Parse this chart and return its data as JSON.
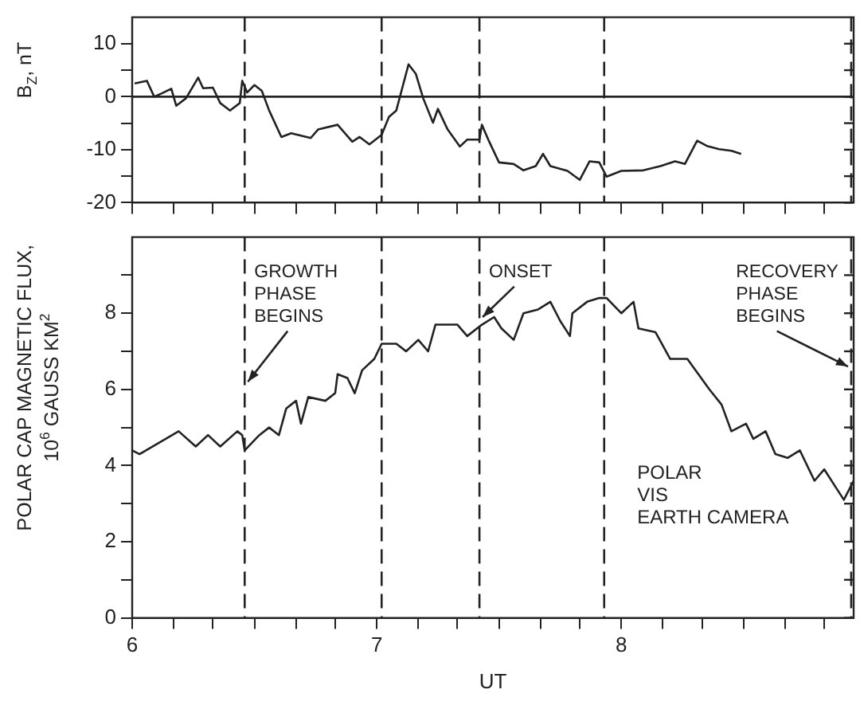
{
  "chart_data": [
    {
      "type": "line",
      "ylabel": "B$_{Z}$, nT",
      "xlim": [
        6,
        8.95
      ],
      "ylim": [
        -20,
        15
      ],
      "xticks": [
        {
          "value": 6,
          "label": null
        },
        {
          "value": 6.17,
          "label": null
        },
        {
          "value": 6.33,
          "label": null
        },
        {
          "value": 6.5,
          "label": null
        },
        {
          "value": 6.67,
          "label": null
        },
        {
          "value": 6.83,
          "label": null
        },
        {
          "value": 7,
          "label": null
        },
        {
          "value": 7.17,
          "label": null
        },
        {
          "value": 7.33,
          "label": null
        },
        {
          "value": 7.5,
          "label": null
        },
        {
          "value": 7.67,
          "label": null
        },
        {
          "value": 7.83,
          "label": null
        },
        {
          "value": 8,
          "label": null
        },
        {
          "value": 8.17,
          "label": null
        },
        {
          "value": 8.33,
          "label": null
        },
        {
          "value": 8.5,
          "label": null
        },
        {
          "value": 8.67,
          "label": null
        },
        {
          "value": 8.83,
          "label": null
        }
      ],
      "yticks": [
        -20,
        {
          "value": -15,
          "label": null
        },
        -10,
        {
          "value": -5,
          "label": null
        },
        0,
        {
          "value": 5,
          "label": null
        },
        10
      ],
      "tick_labels": "y",
      "grid": false,
      "legend": false,
      "marker": "none",
      "line_style": "solid",
      "series": [
        {
          "color": "#222222",
          "x": [
            6.01,
            6.06,
            6.09,
            6.12,
            6.16,
            6.18,
            6.22,
            6.27,
            6.29,
            6.33,
            6.36,
            6.4,
            6.44,
            6.45,
            6.47,
            6.5,
            6.53,
            6.56,
            6.61,
            6.65,
            6.73,
            6.76,
            6.84,
            6.9,
            6.93,
            6.97,
            7.02,
            7.05,
            7.08,
            7.13,
            7.16,
            7.19,
            7.23,
            7.25,
            7.29,
            7.34,
            7.37,
            7.42,
            7.43,
            7.46,
            7.5,
            7.56,
            7.6,
            7.65,
            7.68,
            7.71,
            7.78,
            7.83,
            7.87,
            7.91,
            7.94,
            8,
            8.09,
            8.16,
            8.22,
            8.26,
            8.31,
            8.35,
            8.4,
            8.45,
            8.49
          ],
          "values": [
            2.5,
            3,
            0,
            0.6,
            1.5,
            -1.7,
            -0.3,
            3.6,
            1.6,
            1.7,
            -1.2,
            -2.6,
            -1.2,
            3,
            0.8,
            2.2,
            1.1,
            -2.6,
            -7.6,
            -6.9,
            -7.8,
            -6.2,
            -5.3,
            -8.5,
            -7.6,
            -9,
            -7.2,
            -3.8,
            -2.6,
            6.1,
            4.3,
            -0.3,
            -4.9,
            -2.3,
            -6.2,
            -9.4,
            -8.1,
            -8.1,
            -5.3,
            -8.5,
            -12.4,
            -12.7,
            -13.9,
            -13.1,
            -10.8,
            -13.1,
            -14,
            -15.7,
            -12.2,
            -12.4,
            -15.1,
            -14,
            -13.9,
            -13.1,
            -12.2,
            -12.7,
            -8.3,
            -9.3,
            -9.9,
            -10.2,
            -10.8
          ]
        }
      ],
      "ref_lines": [
        {
          "axis": "y",
          "value": 0,
          "line_style": "solid"
        },
        {
          "axis": "x",
          "value": 6.46,
          "line_style": "dashed"
        },
        {
          "axis": "x",
          "value": 7.02,
          "line_style": "dashed"
        },
        {
          "axis": "x",
          "value": 7.42,
          "line_style": "dashed"
        },
        {
          "axis": "x",
          "value": 7.93,
          "line_style": "dashed"
        },
        {
          "axis": "x",
          "value": 8.94,
          "line_style": "dashed"
        }
      ]
    },
    {
      "type": "line",
      "ylabel": "POLAR CAP MAGNETIC FLUX,\n10$^{6}$ GAUSS KM$^{2}$",
      "xlabel": "UT",
      "xlim": [
        6,
        8.95
      ],
      "ylim": [
        0,
        10
      ],
      "xticks": [
        6,
        {
          "value": 6.17,
          "label": null
        },
        {
          "value": 6.33,
          "label": null
        },
        {
          "value": 6.5,
          "label": null
        },
        {
          "value": 6.67,
          "label": null
        },
        {
          "value": 6.83,
          "label": null
        },
        7,
        {
          "value": 7.17,
          "label": null
        },
        {
          "value": 7.33,
          "label": null
        },
        {
          "value": 7.5,
          "label": null
        },
        {
          "value": 7.67,
          "label": null
        },
        {
          "value": 7.83,
          "label": null
        },
        8,
        {
          "value": 8.17,
          "label": null
        },
        {
          "value": 8.33,
          "label": null
        },
        {
          "value": 8.5,
          "label": null
        },
        {
          "value": 8.67,
          "label": null
        },
        {
          "value": 8.83,
          "label": null
        }
      ],
      "yticks": [
        0,
        {
          "value": 1,
          "label": null
        },
        2,
        {
          "value": 3,
          "label": null
        },
        4,
        {
          "value": 5,
          "label": null
        },
        6,
        {
          "value": 7,
          "label": null
        },
        8,
        {
          "value": 9,
          "label": null
        }
      ],
      "grid": false,
      "legend": false,
      "marker": "none",
      "line_style": "solid",
      "series": [
        {
          "color": "#222222",
          "x": [
            6,
            6.03,
            6.19,
            6.26,
            6.31,
            6.36,
            6.43,
            6.45,
            6.46,
            6.52,
            6.56,
            6.6,
            6.63,
            6.67,
            6.69,
            6.72,
            6.79,
            6.83,
            6.84,
            6.88,
            6.91,
            6.94,
            6.99,
            7.02,
            7.08,
            7.12,
            7.17,
            7.21,
            7.24,
            7.33,
            7.37,
            7.43,
            7.48,
            7.51,
            7.56,
            7.6,
            7.66,
            7.71,
            7.75,
            7.79,
            7.8,
            7.86,
            7.91,
            7.94,
            8,
            8.05,
            8.07,
            8.14,
            8.2,
            8.27,
            8.36,
            8.41,
            8.45,
            8.51,
            8.54,
            8.59,
            8.63,
            8.68,
            8.73,
            8.79,
            8.83,
            8.88,
            8.91,
            8.95
          ],
          "values": [
            4.4,
            4.3,
            4.9,
            4.5,
            4.8,
            4.5,
            4.9,
            4.8,
            4.4,
            4.8,
            5,
            4.8,
            5.5,
            5.7,
            5.1,
            5.8,
            5.7,
            5.9,
            6.4,
            6.3,
            5.9,
            6.5,
            6.8,
            7.2,
            7.2,
            7,
            7.3,
            7,
            7.7,
            7.7,
            7.4,
            7.7,
            7.9,
            7.6,
            7.3,
            8,
            8.1,
            8.3,
            7.8,
            7.4,
            8,
            8.3,
            8.4,
            8.4,
            8,
            8.3,
            7.6,
            7.5,
            6.8,
            6.8,
            6,
            5.6,
            4.9,
            5.1,
            4.7,
            4.9,
            4.3,
            4.2,
            4.4,
            3.6,
            3.9,
            3.4,
            3.1,
            3.6
          ]
        }
      ],
      "ref_lines": [
        {
          "axis": "x",
          "value": 6.46,
          "line_style": "dashed"
        },
        {
          "axis": "x",
          "value": 7.02,
          "line_style": "dashed"
        },
        {
          "axis": "x",
          "value": 7.42,
          "line_style": "dashed"
        },
        {
          "axis": "x",
          "value": 7.93,
          "line_style": "dashed"
        },
        {
          "axis": "x",
          "value": 8.94,
          "line_style": "dashed"
        }
      ],
      "annotations": [
        {
          "text": "GROWTH\nPHASE\nBEGINS",
          "x": 6.46,
          "y": 6.2
        },
        {
          "text": "ONSET",
          "x": 7.42,
          "y": 7.9
        },
        {
          "text": "RECOVERY\nPHASE\nBEGINS",
          "x": 8.94,
          "y": 6.6
        },
        "POLAR\nVIS\nEARTH CAMERA"
      ]
    }
  ]
}
